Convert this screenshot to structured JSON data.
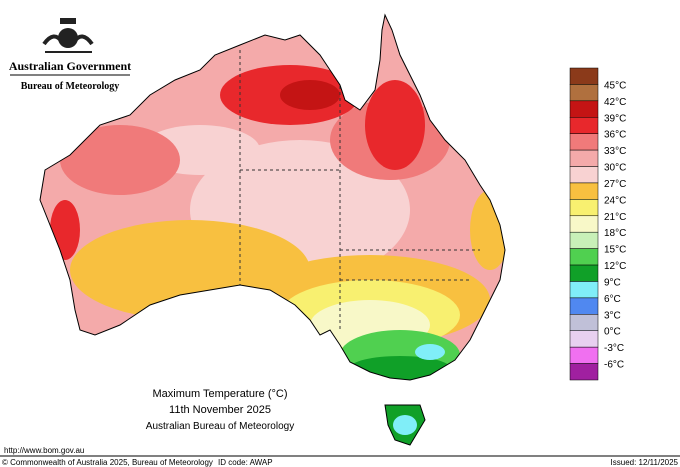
{
  "header": {
    "government": "Australian Government",
    "bureau": "Bureau of Meteorology"
  },
  "legend": {
    "labels": [
      "45°C",
      "42°C",
      "39°C",
      "36°C",
      "33°C",
      "30°C",
      "27°C",
      "24°C",
      "21°C",
      "18°C",
      "15°C",
      "12°C",
      "9°C",
      "6°C",
      "3°C",
      "0°C",
      "-3°C",
      "-6°C"
    ],
    "colors": [
      "#8b3a1a",
      "#b0703e",
      "#c41414",
      "#e8282c",
      "#f07a7a",
      "#f4aaaa",
      "#f8d2d2",
      "#f8c040",
      "#f8f070",
      "#f8f8c8",
      "#c8f0b8",
      "#50d050",
      "#10a028",
      "#80eef8",
      "#5088f0",
      "#c0c0d8",
      "#e8d0f0",
      "#f070f0",
      "#a020a0"
    ]
  },
  "title": {
    "line1": "Maximum Temperature (°C)",
    "line2": "11th November 2025",
    "line3": "Australian Bureau of Meteorology"
  },
  "footer": {
    "url": "http://www.bom.gov.au",
    "copyright": "© Commonwealth of Australia 2025, Bureau of Meteorology",
    "id": "ID code: AWAP",
    "issued": "Issued: 12/11/2025"
  }
}
